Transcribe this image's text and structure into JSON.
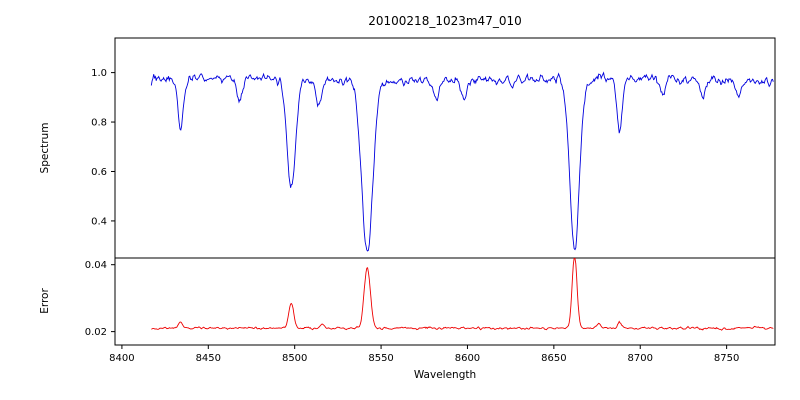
{
  "chart_data": {
    "type": "line",
    "title": "20100218_1023m47_010",
    "xlabel": "Wavelength",
    "grid": false,
    "legend": "none",
    "xlim": [
      8396,
      8778
    ],
    "x_range": [
      8417,
      8777
    ],
    "xticks": [
      {
        "v": 8400,
        "label": "8400"
      },
      {
        "v": 8450,
        "label": "8450"
      },
      {
        "v": 8500,
        "label": "8500"
      },
      {
        "v": 8550,
        "label": "8550"
      },
      {
        "v": 8600,
        "label": "8600"
      },
      {
        "v": 8650,
        "label": "8650"
      },
      {
        "v": 8700,
        "label": "8700"
      },
      {
        "v": 8750,
        "label": "8750"
      }
    ],
    "panels": [
      {
        "ylabel": "Spectrum",
        "ylim": [
          0.25,
          1.14
        ],
        "yticks": [
          {
            "v": 0.4,
            "label": "0.4"
          },
          {
            "v": 0.6,
            "label": "0.6"
          },
          {
            "v": 0.8,
            "label": "0.8"
          },
          {
            "v": 1.0,
            "label": "1.0"
          }
        ],
        "series": [
          {
            "name": "spectrum",
            "color": "#0000dd",
            "continuum": 0.97,
            "noise_amplitude": 0.018,
            "absorption_lines": [
              {
                "center": 8434,
                "depth": 0.21,
                "sigma": 1.6
              },
              {
                "center": 8468,
                "depth": 0.09,
                "sigma": 1.5
              },
              {
                "center": 8498,
                "depth": 0.44,
                "sigma": 2.5
              },
              {
                "center": 8514,
                "depth": 0.11,
                "sigma": 1.5
              },
              {
                "center": 8542,
                "depth": 0.7,
                "sigma": 3.2
              },
              {
                "center": 8582,
                "depth": 0.07,
                "sigma": 1.5
              },
              {
                "center": 8598,
                "depth": 0.06,
                "sigma": 1.4
              },
              {
                "center": 8662,
                "depth": 0.69,
                "sigma": 2.8
              },
              {
                "center": 8688,
                "depth": 0.21,
                "sigma": 1.6
              },
              {
                "center": 8713,
                "depth": 0.06,
                "sigma": 1.4
              },
              {
                "center": 8736,
                "depth": 0.07,
                "sigma": 1.4
              },
              {
                "center": 8757,
                "depth": 0.06,
                "sigma": 1.4
              }
            ]
          }
        ]
      },
      {
        "ylabel": "Error",
        "ylim": [
          0.016,
          0.042
        ],
        "yticks": [
          {
            "v": 0.02,
            "label": "0.02"
          },
          {
            "v": 0.04,
            "label": "0.04"
          }
        ],
        "series": [
          {
            "name": "error",
            "color": "#ee0000",
            "baseline": 0.021,
            "noise_amplitude": 0.00035,
            "peaks": [
              {
                "center": 8434,
                "height": 0.0018,
                "sigma": 1.2
              },
              {
                "center": 8498,
                "height": 0.008,
                "sigma": 1.4
              },
              {
                "center": 8516,
                "height": 0.001,
                "sigma": 1.2
              },
              {
                "center": 8542,
                "height": 0.018,
                "sigma": 1.8
              },
              {
                "center": 8662,
                "height": 0.022,
                "sigma": 1.4
              },
              {
                "center": 8676,
                "height": 0.0012,
                "sigma": 1.2
              },
              {
                "center": 8688,
                "height": 0.0018,
                "sigma": 1.2
              }
            ]
          }
        ]
      }
    ]
  }
}
